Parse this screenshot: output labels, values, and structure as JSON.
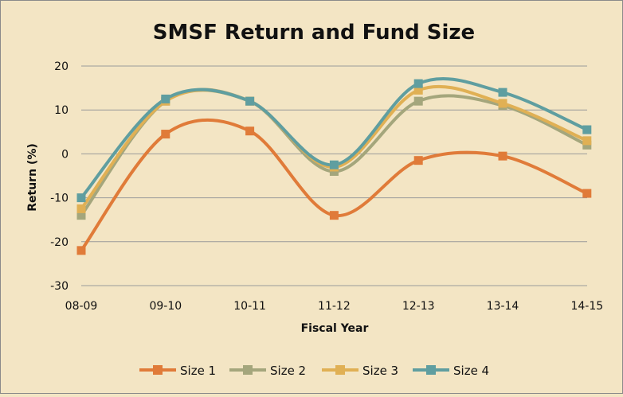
{
  "chart_data": {
    "type": "line",
    "title": "SMSF Return and Fund Size",
    "xlabel": "Fiscal Year",
    "ylabel": "Return (%)",
    "categories": [
      "08-09",
      "09-10",
      "10-11",
      "11-12",
      "12-13",
      "13-14",
      "14-15"
    ],
    "ylim": [
      -30,
      20
    ],
    "yticks": [
      -30,
      -20,
      -10,
      0,
      10,
      20
    ],
    "grid": true,
    "smooth": true,
    "legend_position": "bottom",
    "series": [
      {
        "name": "Size 1",
        "color": "#e07b39",
        "values": [
          -22,
          4.5,
          5.2,
          -14,
          -1.5,
          -0.5,
          -9
        ]
      },
      {
        "name": "Size 2",
        "color": "#a4a67c",
        "values": [
          -14,
          12,
          12,
          -4,
          12,
          11,
          2
        ]
      },
      {
        "name": "Size 3",
        "color": "#e0b054",
        "values": [
          -12.5,
          12,
          12,
          -3,
          14.5,
          11.5,
          3
        ]
      },
      {
        "name": "Size 4",
        "color": "#5f9ea0",
        "values": [
          -10,
          12.5,
          12,
          -2.5,
          16,
          14,
          5.5
        ]
      }
    ]
  }
}
